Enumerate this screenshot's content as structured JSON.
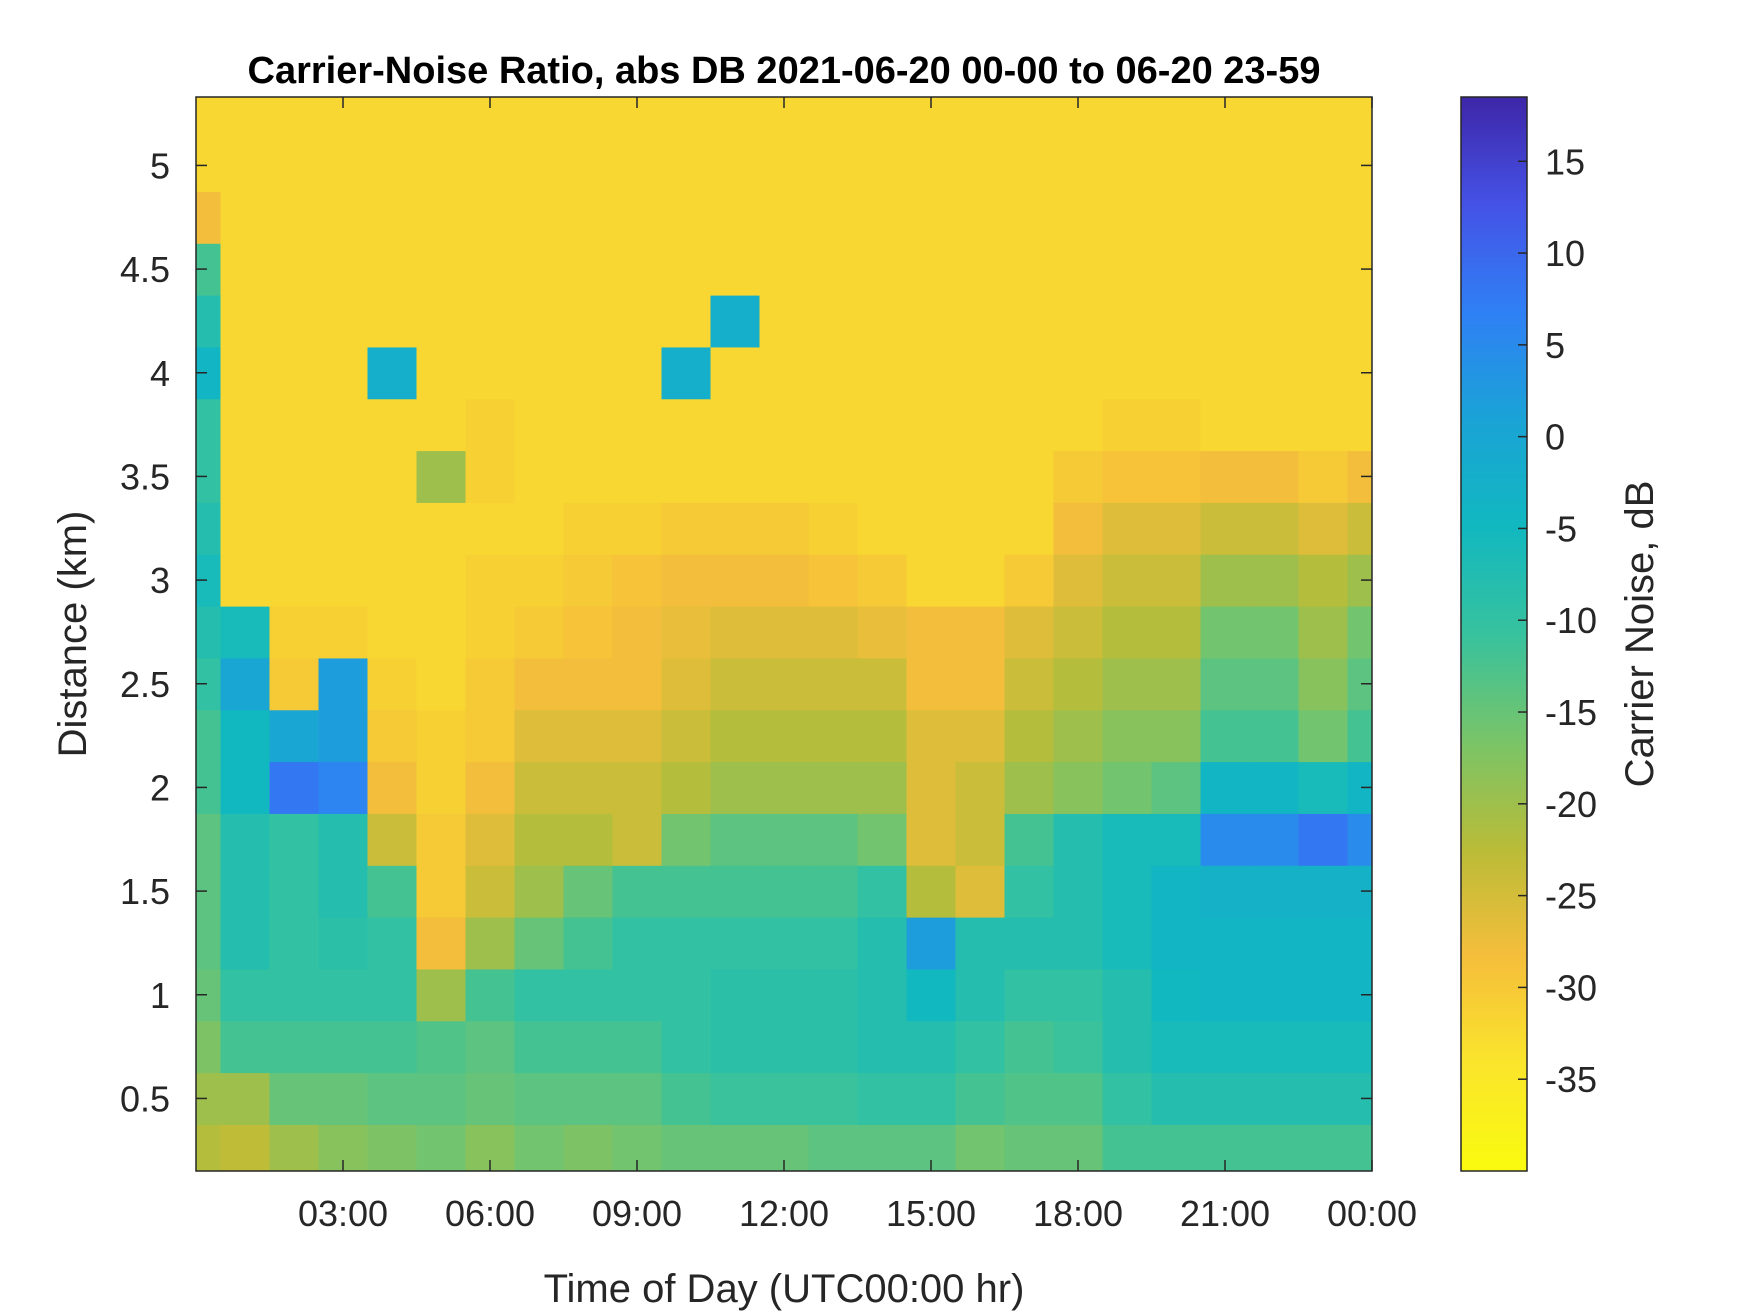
{
  "chart_data": {
    "type": "heatmap",
    "title": "Carrier-Noise Ratio, abs DB 2021-06-20 00-00 to 06-20 23-59",
    "xlabel": "Time of Day (UTC00:00 hr)",
    "ylabel": "Distance (km)",
    "x_unit": "hour",
    "xlim": [
      0,
      24
    ],
    "ylim": [
      0.15,
      5.33
    ],
    "x_ticks": [
      3,
      6,
      9,
      12,
      15,
      18,
      21,
      24
    ],
    "x_tick_labels": [
      "03:00",
      "06:00",
      "09:00",
      "12:00",
      "15:00",
      "18:00",
      "21:00",
      "00:00"
    ],
    "y_ticks": [
      0.5,
      1,
      1.5,
      2,
      2.5,
      3,
      3.5,
      4,
      4.5,
      5
    ],
    "y_tick_labels": [
      "0.5",
      "1",
      "1.5",
      "2",
      "2.5",
      "3",
      "3.5",
      "4",
      "4.5",
      "5"
    ],
    "grid": false,
    "colorbar": {
      "label": "Carrier Noise, dB",
      "range": [
        -40,
        18.5
      ],
      "ticks": [
        15,
        10,
        5,
        0,
        -5,
        -10,
        -15,
        -20,
        -25,
        -30,
        -35
      ],
      "tick_labels": [
        "15",
        "10",
        "5",
        "0",
        "-5",
        "-10",
        "-15",
        "-20",
        "-25",
        "-30",
        "-35"
      ],
      "colormap": "parula-reversed",
      "colors_high_to_low": [
        "#3e26a8",
        "#4552e6",
        "#2f80f5",
        "#1aa3d6",
        "#11b8c0",
        "#37c29e",
        "#79c468",
        "#b9bc38",
        "#f5be3b",
        "#fae52c",
        "#f9fb0e"
      ]
    },
    "columns_hour": [
      0,
      1,
      2,
      3,
      4,
      5,
      6,
      7,
      8,
      9,
      10,
      11,
      12,
      13,
      14,
      15,
      16,
      17,
      18,
      19,
      20,
      21,
      22,
      23,
      24
    ],
    "rows_km": [
      0.25,
      0.5,
      0.75,
      1.0,
      1.25,
      1.5,
      1.75,
      2.0,
      2.25,
      2.5,
      2.75,
      3.0,
      3.25,
      3.5,
      3.75,
      4.0,
      4.25,
      4.5,
      4.75,
      5.0,
      5.25
    ],
    "values_db": [
      [
        -22,
        -23,
        -20,
        -18,
        -17,
        -16,
        -18,
        -16,
        -17,
        -16,
        -15,
        -15,
        -15,
        -14,
        -14,
        -14,
        -16,
        -15,
        -15,
        -12,
        -12,
        -12,
        -12,
        -12,
        -12
      ],
      [
        -20,
        -20,
        -15,
        -15,
        -14,
        -14,
        -15,
        -14,
        -14,
        -14,
        -12,
        -11,
        -11,
        -11,
        -10,
        -10,
        -12,
        -13,
        -13,
        -10,
        -8,
        -8,
        -8,
        -8,
        -8
      ],
      [
        -17,
        -12,
        -12,
        -12,
        -12,
        -13,
        -14,
        -12,
        -12,
        -12,
        -10,
        -9,
        -9,
        -9,
        -8,
        -8,
        -10,
        -12,
        -11,
        -8,
        -6,
        -6,
        -6,
        -6,
        -6
      ],
      [
        -15,
        -10,
        -10,
        -10,
        -10,
        -20,
        -12,
        -10,
        -10,
        -10,
        -10,
        -9,
        -9,
        -9,
        -8,
        -5,
        -8,
        -10,
        -10,
        -8,
        -5,
        -4,
        -4,
        -4,
        -4
      ],
      [
        -14,
        -8,
        -10,
        -9,
        -10,
        -28,
        -20,
        -15,
        -12,
        -10,
        -10,
        -10,
        -10,
        -10,
        -8,
        2,
        -8,
        -8,
        -8,
        -6,
        -4,
        -4,
        -4,
        -4,
        -4
      ],
      [
        -14,
        -8,
        -10,
        -8,
        -12,
        -30,
        -24,
        -20,
        -15,
        -12,
        -12,
        -12,
        -12,
        -12,
        -10,
        -22,
        -26,
        -10,
        -8,
        -6,
        -4,
        -3,
        -3,
        -3,
        -3
      ],
      [
        -14,
        -8,
        -10,
        -8,
        -24,
        -30,
        -26,
        -22,
        -22,
        -24,
        -16,
        -14,
        -14,
        -14,
        -16,
        -26,
        -24,
        -12,
        -8,
        -6,
        -6,
        5,
        5,
        8,
        5
      ],
      [
        -12,
        -5,
        8,
        6,
        -28,
        -31,
        -28,
        -24,
        -24,
        -24,
        -22,
        -20,
        -20,
        -20,
        -20,
        -26,
        -24,
        -20,
        -18,
        -16,
        -14,
        -4,
        -4,
        -6,
        -4
      ],
      [
        -12,
        -5,
        0,
        2,
        -30,
        -31,
        -30,
        -26,
        -26,
        -26,
        -24,
        -22,
        -22,
        -22,
        -22,
        -26,
        -26,
        -22,
        -20,
        -18,
        -18,
        -12,
        -12,
        -16,
        -12
      ],
      [
        -10,
        0,
        -30,
        2,
        -31,
        -32,
        -30,
        -28,
        -28,
        -28,
        -26,
        -24,
        -24,
        -24,
        -24,
        -28,
        -28,
        -24,
        -22,
        -20,
        -20,
        -14,
        -14,
        -18,
        -14
      ],
      [
        -8,
        -6,
        -31,
        -31,
        -32,
        -32,
        -31,
        -30,
        -29,
        -28,
        -27,
        -26,
        -26,
        -26,
        -27,
        -28,
        -28,
        -26,
        -24,
        -22,
        -22,
        -16,
        -16,
        -20,
        -16
      ],
      [
        -6,
        -32,
        -32,
        -32,
        -32,
        -32,
        -31,
        -31,
        -30,
        -29,
        -28,
        -28,
        -28,
        -29,
        -30,
        -32,
        -32,
        -30,
        -26,
        -24,
        -24,
        -20,
        -20,
        -22,
        -20
      ],
      [
        -8,
        -32,
        -32,
        -32,
        -32,
        -32,
        -32,
        -32,
        -31,
        -31,
        -30,
        -30,
        -30,
        -31,
        -32,
        -32,
        -32,
        -32,
        -28,
        -26,
        -26,
        -24,
        -24,
        -26,
        -24
      ],
      [
        -10,
        -32,
        -32,
        -32,
        -32,
        -20,
        -31,
        -32,
        -32,
        -32,
        -32,
        -32,
        -32,
        -32,
        -32,
        -32,
        -32,
        -32,
        -30,
        -29,
        -29,
        -28,
        -28,
        -30,
        -28
      ],
      [
        -10,
        -32,
        -32,
        -32,
        -32,
        -32,
        -31,
        -32,
        -32,
        -32,
        -32,
        -32,
        -32,
        -32,
        -32,
        -32,
        -32,
        -32,
        -32,
        -31,
        -31,
        -32,
        -32,
        -32,
        -32
      ],
      [
        -4,
        -32,
        -32,
        -32,
        -2,
        -32,
        -32,
        -32,
        -32,
        -32,
        -2,
        -32,
        -32,
        -32,
        -32,
        -32,
        -32,
        -32,
        -32,
        -32,
        -32,
        -32,
        -32,
        -32,
        -32
      ],
      [
        -8,
        -32,
        -32,
        -32,
        -32,
        -32,
        -32,
        -32,
        -32,
        -32,
        -32,
        -2,
        -32,
        -32,
        -32,
        -32,
        -32,
        -32,
        -32,
        -32,
        -32,
        -32,
        -32,
        -32,
        -32
      ],
      [
        -12,
        -32,
        -32,
        -32,
        -32,
        -32,
        -32,
        -32,
        -32,
        -32,
        -32,
        -32,
        -32,
        -32,
        -32,
        -32,
        -32,
        -32,
        -32,
        -32,
        -32,
        -32,
        -32,
        -32,
        -32
      ],
      [
        -28,
        -32,
        -32,
        -32,
        -32,
        -32,
        -32,
        -32,
        -32,
        -32,
        -32,
        -32,
        -32,
        -32,
        -32,
        -32,
        -32,
        -32,
        -32,
        -32,
        -32,
        -32,
        -32,
        -32,
        -32
      ],
      [
        -32,
        -32,
        -32,
        -32,
        -32,
        -32,
        -32,
        -32,
        -32,
        -32,
        -32,
        -32,
        -32,
        -32,
        -32,
        -32,
        -32,
        -32,
        -32,
        -32,
        -32,
        -32,
        -32,
        -32,
        -32
      ],
      [
        -32,
        -32,
        -32,
        -32,
        -32,
        -32,
        -32,
        -32,
        -32,
        -32,
        -32,
        -32,
        -32,
        -32,
        -32,
        -32,
        -32,
        -32,
        -32,
        -32,
        -32,
        -32,
        -32,
        -32,
        -32
      ]
    ]
  }
}
